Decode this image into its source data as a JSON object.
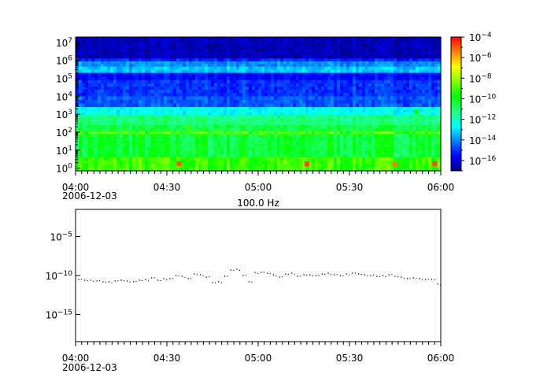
{
  "chart_data": [
    {
      "type": "heatmap",
      "xaxis": {
        "scale": "time",
        "range": [
          "04:00",
          "06:00"
        ],
        "tick_labels": [
          "04:00",
          "04:30",
          "05:00",
          "05:30",
          "06:00"
        ],
        "date_label": "2006-12-03"
      },
      "yaxis": {
        "scale": "log",
        "range_exp": [
          -0.15,
          7.3
        ],
        "tick_exponents": [
          0,
          1,
          2,
          3,
          4,
          5,
          6,
          7
        ],
        "tick_base": "10"
      },
      "colorbar": {
        "scale": "log",
        "range_exp": [
          -17,
          -4
        ],
        "tick_exponents": [
          -4,
          -6,
          -8,
          -10,
          -12,
          -14,
          -16
        ],
        "tick_base": "10",
        "colormap": [
          "#00008f",
          "#0000ff",
          "#0080ff",
          "#00ffff",
          "#20ff80",
          "#00ff00",
          "#80ff00",
          "#ffff00",
          "#ff8000",
          "#ff0000"
        ]
      },
      "bands": [
        {
          "f_exp": [
            6.1,
            7.3
          ],
          "level": -16.5
        },
        {
          "f_exp": [
            5.95,
            6.1
          ],
          "level": -15.2
        },
        {
          "f_exp": [
            5.65,
            5.95
          ],
          "level": -14.0
        },
        {
          "f_exp": [
            5.3,
            5.65
          ],
          "level": -13.3
        },
        {
          "f_exp": [
            4.9,
            5.3
          ],
          "level": -15.6
        },
        {
          "f_exp": [
            4.0,
            4.9
          ],
          "level": -15.0
        },
        {
          "f_exp": [
            3.4,
            4.0
          ],
          "level": -14.6
        },
        {
          "f_exp": [
            2.95,
            3.4
          ],
          "level": -12.6
        },
        {
          "f_exp": [
            2.4,
            2.95
          ],
          "level": -11.2
        },
        {
          "f_exp": [
            2.05,
            2.4
          ],
          "level": -10.6
        },
        {
          "f_exp": [
            1.9,
            2.05
          ],
          "level": -8.8
        },
        {
          "f_exp": [
            0.6,
            1.9
          ],
          "level": -10.4
        },
        {
          "f_exp": [
            -0.15,
            0.6
          ],
          "level": -9.2
        }
      ],
      "spots": [
        {
          "t": "04:37",
          "f_exp": 2.2,
          "level": -9.0
        },
        {
          "t": "05:01",
          "f_exp": 1.9,
          "level": -8.6
        },
        {
          "t": "05:16",
          "f_exp": 0.2,
          "level": -4.8
        },
        {
          "t": "05:52",
          "f_exp": 3.1,
          "level": -9.6
        },
        {
          "t": "04:34",
          "f_exp": 0.2,
          "level": -5.0
        },
        {
          "t": "05:45",
          "f_exp": 0.2,
          "level": -5.4
        },
        {
          "t": "05:58",
          "f_exp": 0.2,
          "level": -4.9
        }
      ]
    },
    {
      "type": "scatter",
      "title": "100.0 Hz",
      "xaxis": {
        "scale": "time",
        "range": [
          "04:00",
          "06:00"
        ],
        "tick_labels": [
          "04:00",
          "04:30",
          "05:00",
          "05:30",
          "06:00"
        ],
        "date_label": "2006-12-03"
      },
      "yaxis": {
        "scale": "log",
        "range_exp": [
          -18.5,
          -1.5
        ],
        "tick_exponents": [
          -5,
          -10,
          -15
        ],
        "tick_base": "10"
      },
      "series": [
        {
          "x_minutes_after_0400": [
            1,
            3,
            5,
            7,
            9,
            11,
            13,
            15,
            17,
            19,
            21,
            23,
            25,
            27,
            29,
            31,
            33,
            35,
            37,
            39,
            41,
            43,
            45,
            47,
            49,
            51,
            53,
            55,
            57,
            59,
            61,
            63,
            65,
            67,
            69,
            71,
            73,
            75,
            77,
            79,
            81,
            83,
            85,
            87,
            89,
            91,
            93,
            95,
            97,
            99,
            101,
            103,
            105,
            107,
            109,
            111,
            113,
            115,
            117,
            119
          ],
          "y_exp": [
            -10.5,
            -10.6,
            -10.6,
            -10.7,
            -10.8,
            -10.8,
            -10.7,
            -10.6,
            -10.7,
            -10.8,
            -10.6,
            -10.5,
            -10.3,
            -10.6,
            -10.4,
            -10.4,
            -10.0,
            -10.1,
            -10.4,
            -9.8,
            -9.9,
            -10.2,
            -10.9,
            -10.8,
            -10.1,
            -9.3,
            -9.2,
            -10.0,
            -10.8,
            -9.6,
            -9.6,
            -9.7,
            -9.9,
            -10.2,
            -9.8,
            -9.7,
            -10.1,
            -9.9,
            -9.9,
            -10.0,
            -9.8,
            -9.7,
            -9.9,
            -10.0,
            -9.8,
            -9.7,
            -9.8,
            -9.9,
            -10.0,
            -10.1,
            -10.0,
            -9.9,
            -10.1,
            -10.2,
            -10.4,
            -10.3,
            -10.4,
            -10.5,
            -10.5,
            -11.1
          ]
        }
      ]
    }
  ]
}
